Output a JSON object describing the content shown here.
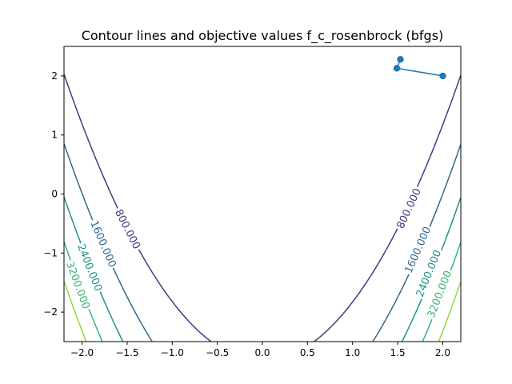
{
  "chart_data": {
    "type": "line",
    "title": "Contour lines and objective values f_c_rosenbrock (bfgs)",
    "xlabel": "",
    "ylabel": "",
    "xlim": [
      -2.2,
      2.2
    ],
    "ylim": [
      -2.5,
      2.5
    ],
    "grid": false,
    "legend": "none",
    "x_ticks": [
      -2.0,
      -1.5,
      -1.0,
      -0.5,
      0.0,
      0.5,
      1.0,
      1.5,
      2.0
    ],
    "x_tick_labels": [
      "−2.0",
      "−1.5",
      "−1.0",
      "−0.5",
      "0.0",
      "0.5",
      "1.0",
      "1.5",
      "2.0"
    ],
    "y_ticks": [
      -2,
      -1,
      0,
      1,
      2
    ],
    "y_tick_labels": [
      "−2",
      "−1",
      "0",
      "1",
      "2"
    ],
    "contours": [
      {
        "level": 800,
        "label": "800.000",
        "color": "#443983",
        "label_points": [
          {
            "x": -1.5,
            "y": -0.6
          },
          {
            "x": 1.63,
            "y": -0.25
          }
        ]
      },
      {
        "level": 1600,
        "label": "1600.000",
        "color": "#31688e",
        "label_points": [
          {
            "x": -1.77,
            "y": -0.85
          },
          {
            "x": 1.73,
            "y": -0.95
          }
        ]
      },
      {
        "level": 2400,
        "label": "2400.000",
        "color": "#21918c",
        "label_points": [
          {
            "x": -1.92,
            "y": -1.25
          },
          {
            "x": 1.85,
            "y": -1.35
          }
        ]
      },
      {
        "level": 3200,
        "label": "3200.000",
        "color": "#35b779",
        "label_points": [
          {
            "x": -2.05,
            "y": -1.55
          },
          {
            "x": 1.97,
            "y": -1.7
          }
        ]
      },
      {
        "level": 4000,
        "label": "",
        "color": "#90d743",
        "label_points": []
      }
    ],
    "series": [
      {
        "type": "line-with-markers",
        "color": "#1f77b4",
        "x": [
          2.0,
          1.49,
          1.53
        ],
        "y": [
          2.0,
          2.13,
          2.28
        ]
      }
    ]
  }
}
